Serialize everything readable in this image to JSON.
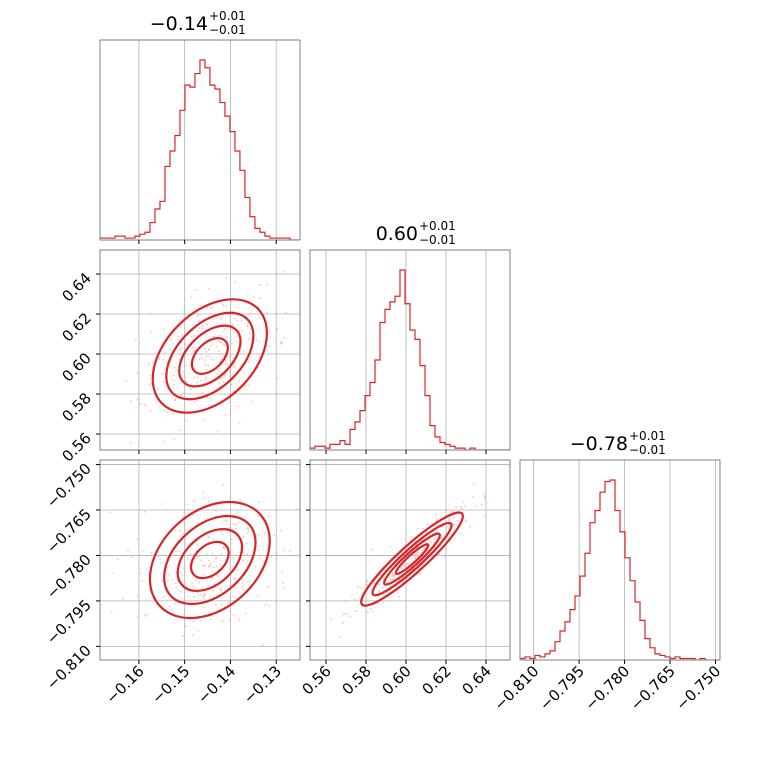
{
  "chart_data": {
    "type": "corner",
    "color": "#d62728",
    "scatter_color": "#f3b8b8",
    "grid": true,
    "parameters": [
      {
        "median": "−0.14",
        "upper": "+0.01",
        "lower": "−0.01",
        "range": [
          -0.1685,
          -0.1248
        ]
      },
      {
        "median": "0.60",
        "upper": "+0.01",
        "lower": "−0.01",
        "range": [
          0.552,
          0.652
        ]
      },
      {
        "median": "−0.78",
        "upper": "+0.01",
        "lower": "−0.01",
        "range": [
          -0.8145,
          -0.7485
        ]
      }
    ],
    "ticks": [
      {
        "values": [
          -0.16,
          -0.15,
          -0.14,
          -0.13
        ],
        "labels": [
          "−0.16",
          "−0.15",
          "−0.14",
          "−0.13"
        ]
      },
      {
        "values": [
          0.56,
          0.58,
          0.6,
          0.62,
          0.64
        ],
        "labels": [
          "0.56",
          "0.58",
          "0.60",
          "0.62",
          "0.64"
        ]
      },
      {
        "values": [
          -0.81,
          -0.795,
          -0.78,
          -0.765,
          -0.75
        ],
        "labels": [
          "−0.810",
          "−0.795",
          "−0.780",
          "−0.765",
          "−0.750"
        ]
      }
    ],
    "histograms": [
      {
        "edges_start": -0.1685,
        "bin_width": 0.001092,
        "counts": [
          1,
          1,
          1,
          2,
          2,
          1,
          1,
          2,
          3,
          4,
          9,
          16,
          20,
          38,
          46,
          54,
          67,
          80,
          79,
          86,
          93,
          89,
          80,
          78,
          71,
          64,
          56,
          46,
          36,
          22,
          12,
          6,
          4,
          2,
          1,
          1,
          1,
          1,
          0,
          0
        ]
      },
      {
        "edges_start": 0.552,
        "bin_width": 0.0025,
        "counts": [
          1,
          2,
          2,
          1,
          3,
          3,
          5,
          3,
          11,
          15,
          21,
          29,
          36,
          48,
          68,
          75,
          79,
          82,
          96,
          78,
          64,
          59,
          45,
          29,
          13,
          7,
          4,
          3,
          2,
          1,
          1,
          0,
          1,
          0,
          0,
          0,
          0,
          0,
          0,
          0
        ]
      },
      {
        "edges_start": -0.8145,
        "bin_width": 0.00165,
        "counts": [
          1,
          2,
          1,
          3,
          2,
          4,
          6,
          12,
          19,
          25,
          33,
          42,
          55,
          70,
          90,
          98,
          110,
          117,
          118,
          98,
          84,
          67,
          52,
          38,
          26,
          14,
          8,
          4,
          3,
          2,
          1,
          2,
          1,
          1,
          1,
          0,
          1,
          0,
          0,
          0
        ]
      }
    ],
    "correlations": [
      {
        "params": [
          0,
          1
        ],
        "center": [
          -0.1445,
          0.599
        ],
        "slope": 2.25,
        "half_length": 0.0105,
        "half_width": 0.0011,
        "orth_sd": 0.001
      },
      {
        "params": [
          0,
          2
        ],
        "center": [
          -0.1445,
          -0.7815
        ],
        "slope": 1.37,
        "half_length": 0.011,
        "half_width": 0.0012,
        "orth_sd": 0.0011
      },
      {
        "params": [
          1,
          2
        ],
        "center": [
          0.603,
          -0.7812
        ],
        "slope": 0.6,
        "half_length": 0.025,
        "half_width": 0.0008,
        "orth_sd": 0.0007
      }
    ]
  }
}
